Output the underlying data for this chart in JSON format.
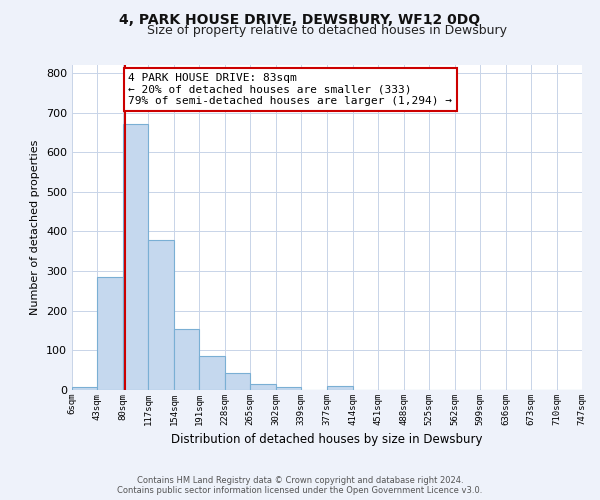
{
  "title": "4, PARK HOUSE DRIVE, DEWSBURY, WF12 0DQ",
  "subtitle": "Size of property relative to detached houses in Dewsbury",
  "xlabel": "Distribution of detached houses by size in Dewsbury",
  "ylabel": "Number of detached properties",
  "bar_edges": [
    6,
    43,
    80,
    117,
    154,
    191,
    228,
    265,
    302,
    339,
    377,
    414,
    451,
    488,
    525,
    562,
    599,
    636,
    673,
    710,
    747
  ],
  "bar_heights": [
    8,
    285,
    670,
    378,
    155,
    85,
    42,
    14,
    8,
    0,
    10,
    0,
    0,
    0,
    0,
    0,
    0,
    0,
    0,
    0
  ],
  "tick_labels": [
    "6sqm",
    "43sqm",
    "80sqm",
    "117sqm",
    "154sqm",
    "191sqm",
    "228sqm",
    "265sqm",
    "302sqm",
    "339sqm",
    "377sqm",
    "414sqm",
    "451sqm",
    "488sqm",
    "525sqm",
    "562sqm",
    "599sqm",
    "636sqm",
    "673sqm",
    "710sqm",
    "747sqm"
  ],
  "property_line_x": 83,
  "bar_color": "#c5d8ee",
  "bar_edge_color": "#7aafd4",
  "property_line_color": "#cc0000",
  "annotation_line1": "4 PARK HOUSE DRIVE: 83sqm",
  "annotation_line2": "← 20% of detached houses are smaller (333)",
  "annotation_line3": "79% of semi-detached houses are larger (1,294) →",
  "annotation_box_color": "#ffffff",
  "annotation_box_edge": "#cc0000",
  "ylim": [
    0,
    820
  ],
  "yticks": [
    0,
    100,
    200,
    300,
    400,
    500,
    600,
    700,
    800
  ],
  "footer_line1": "Contains HM Land Registry data © Crown copyright and database right 2024.",
  "footer_line2": "Contains public sector information licensed under the Open Government Licence v3.0.",
  "bg_color": "#eef2fa",
  "plot_bg_color": "#ffffff",
  "grid_color": "#c8d4e8"
}
